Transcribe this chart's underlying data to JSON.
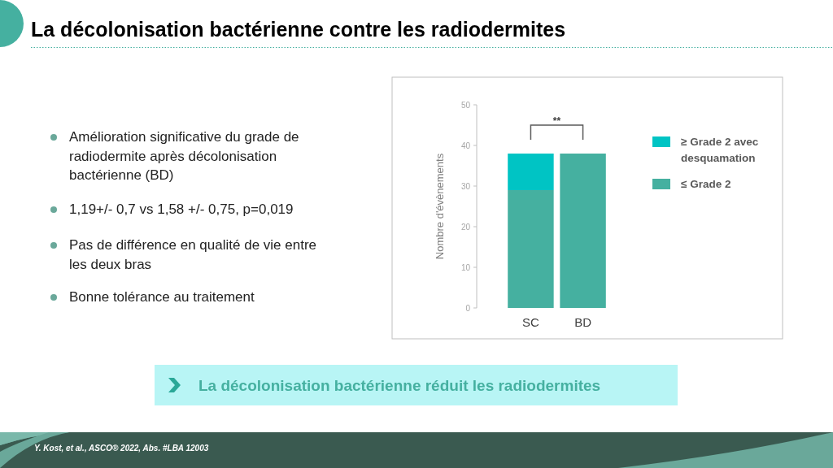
{
  "chart_data": {
    "type": "bar",
    "stacked": true,
    "title": "La décolonisation bactérienne contre les radiodermites",
    "ylabel": "Nombre d'évènements",
    "categories": [
      "SC",
      "BD"
    ],
    "series": [
      {
        "name": "≤ Grade 2",
        "color": "#45b0a0",
        "values": [
          29,
          38
        ]
      },
      {
        "name": "≥ Grade 2 avec desquamation",
        "color": "#00c4c4",
        "values": [
          9,
          0
        ]
      }
    ],
    "ylim": [
      0,
      50
    ],
    "yticks": [
      0,
      10,
      20,
      30,
      40,
      50
    ],
    "grid": false,
    "legend": "right",
    "annotations": [
      "Amélioration significative du grade de radiodermite après décolonisation bactérienne (BD)",
      "1,19+/- 0,7 vs 1,58 +/- 0,75, p=0,019",
      "Pas de différence en qualité de vie entre les deux bras",
      "Bonne tolérance au traitement",
      "La décolonisation bactérienne réduit les radiodermites",
      "Y. Kost, et al., ASCO® 2022, Abs. #LBA 12003",
      "**"
    ]
  }
}
